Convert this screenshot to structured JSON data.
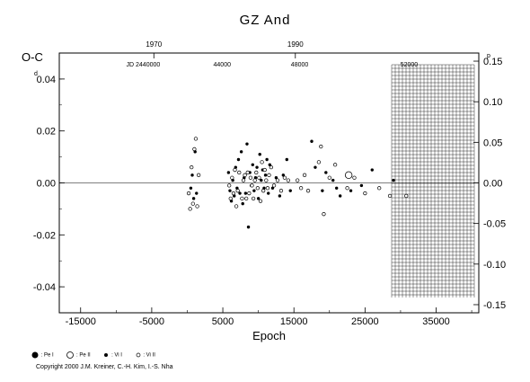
{
  "title": "GZ And",
  "copyright": "Copyright 2000 J.M. Kreiner, C.-H. Kim, I.-S. Nha",
  "legend": [
    {
      "label": ": Pe I",
      "symbol": "filled-large"
    },
    {
      "label": ": Pe II",
      "symbol": "open-large"
    },
    {
      "label": ": Vi I",
      "symbol": "filled-small"
    },
    {
      "label": ": Vi II",
      "symbol": "open-small"
    }
  ],
  "chart_data": {
    "type": "scatter",
    "title": "GZ And",
    "xlabel": "Epoch",
    "ylabel": "O-C",
    "y_unit": "d",
    "y2_unit": "p",
    "xlim": [
      -18000,
      41000
    ],
    "ylim": [
      -0.05,
      0.05
    ],
    "y2lim": [
      -0.16,
      0.16
    ],
    "x_ticks": [
      -15000,
      -5000,
      5000,
      15000,
      25000,
      35000
    ],
    "x_tick_labels": [
      "-15000",
      "-5000",
      "5000",
      "15000",
      "25000",
      "35000"
    ],
    "y_ticks": [
      -0.04,
      -0.02,
      0.0,
      0.02,
      0.04
    ],
    "y_tick_labels": [
      "-0.04",
      "-0.02",
      "0.00",
      "0.02",
      "0.04"
    ],
    "y2_ticks": [
      -0.15,
      -0.1,
      -0.05,
      0.0,
      0.05,
      0.1,
      0.15
    ],
    "y2_tick_labels": [
      "-0.15",
      "-0.10",
      "-0.05",
      "0.00",
      "0.05",
      "0.10",
      "0.15"
    ],
    "top_year_ticks": [
      {
        "label": "1970",
        "x": -4700
      },
      {
        "label": "1990",
        "x": 15200
      }
    ],
    "top_jd_ticks": [
      {
        "label": "JD 2440000",
        "x": -6200
      },
      {
        "label": "44000",
        "x": 4900
      },
      {
        "label": "48000",
        "x": 15800
      },
      {
        "label": "52000",
        "x": 31200
      }
    ],
    "reference_line_y": 0.0,
    "grid": "hatched region x >= 30600",
    "series": [
      {
        "name": ": Vi I",
        "marker": "filled-small",
        "points": [
          [
            500,
            -0.002
          ],
          [
            700,
            0.003
          ],
          [
            900,
            -0.006
          ],
          [
            1100,
            0.012
          ],
          [
            1300,
            -0.004
          ],
          [
            5800,
            0.004
          ],
          [
            6000,
            -0.003
          ],
          [
            6200,
            -0.007
          ],
          [
            6400,
            0.001
          ],
          [
            6600,
            -0.005
          ],
          [
            6800,
            0.006
          ],
          [
            7000,
            -0.002
          ],
          [
            7200,
            0.009
          ],
          [
            7400,
            -0.004
          ],
          [
            7600,
            0.012
          ],
          [
            7800,
            -0.008
          ],
          [
            8000,
            0.002
          ],
          [
            8200,
            -0.004
          ],
          [
            8400,
            0.015
          ],
          [
            8600,
            -0.017
          ],
          [
            8800,
            0.004
          ],
          [
            9000,
            -0.001
          ],
          [
            9200,
            0.007
          ],
          [
            9400,
            -0.003
          ],
          [
            9600,
            0.002
          ],
          [
            9800,
            0.006
          ],
          [
            10000,
            -0.006
          ],
          [
            10200,
            0.011
          ],
          [
            10400,
            0.001
          ],
          [
            10600,
            0.005
          ],
          [
            10800,
            -0.002
          ],
          [
            11000,
            0.003
          ],
          [
            11200,
            0.009
          ],
          [
            11400,
            -0.004
          ],
          [
            11600,
            0.007
          ],
          [
            12000,
            -0.002
          ],
          [
            12500,
            0.002
          ],
          [
            13000,
            -0.005
          ],
          [
            13500,
            0.003
          ],
          [
            14000,
            0.009
          ],
          [
            14500,
            -0.003
          ],
          [
            17500,
            0.016
          ],
          [
            18000,
            0.006
          ],
          [
            19000,
            -0.003
          ],
          [
            19500,
            0.004
          ],
          [
            20500,
            0.001
          ],
          [
            21000,
            -0.002
          ],
          [
            21500,
            -0.005
          ],
          [
            23000,
            -0.003
          ],
          [
            24500,
            -0.001
          ],
          [
            26000,
            0.005
          ],
          [
            29000,
            0.001
          ]
        ]
      },
      {
        "name": ": Vi II",
        "marker": "open-small",
        "points": [
          [
            200,
            -0.004
          ],
          [
            400,
            -0.01
          ],
          [
            600,
            0.006
          ],
          [
            800,
            -0.008
          ],
          [
            1000,
            0.013
          ],
          [
            1200,
            0.017
          ],
          [
            1400,
            -0.009
          ],
          [
            1600,
            0.003
          ],
          [
            5900,
            -0.001
          ],
          [
            6100,
            -0.006
          ],
          [
            6300,
            0.002
          ],
          [
            6500,
            -0.004
          ],
          [
            6700,
            0.005
          ],
          [
            6900,
            -0.009
          ],
          [
            7100,
            -0.003
          ],
          [
            7300,
            0.004
          ],
          [
            7700,
            -0.006
          ],
          [
            7900,
            0.001
          ],
          [
            8100,
            0.003
          ],
          [
            8300,
            -0.006
          ],
          [
            8500,
            0.004
          ],
          [
            8700,
            -0.004
          ],
          [
            8900,
            0.002
          ],
          [
            9100,
            -0.001
          ],
          [
            9300,
            -0.006
          ],
          [
            9500,
            0.001
          ],
          [
            9700,
            0.004
          ],
          [
            9900,
            -0.002
          ],
          [
            10100,
            0.002
          ],
          [
            10300,
            -0.007
          ],
          [
            10500,
            0.008
          ],
          [
            10700,
            -0.003
          ],
          [
            10900,
            0.005
          ],
          [
            11100,
            0.001
          ],
          [
            11300,
            -0.002
          ],
          [
            11500,
            0.003
          ],
          [
            11800,
            0.006
          ],
          [
            12200,
            -0.001
          ],
          [
            12700,
            0.001
          ],
          [
            13200,
            -0.003
          ],
          [
            13700,
            0.002
          ],
          [
            14200,
            0.001
          ],
          [
            15500,
            0.001
          ],
          [
            16000,
            -0.002
          ],
          [
            16500,
            0.003
          ],
          [
            17000,
            -0.003
          ],
          [
            18500,
            0.008
          ],
          [
            18800,
            0.014
          ],
          [
            19200,
            -0.012
          ],
          [
            20000,
            0.002
          ],
          [
            20800,
            0.007
          ],
          [
            22500,
            -0.002
          ],
          [
            23500,
            0.002
          ],
          [
            25000,
            -0.004
          ],
          [
            27000,
            -0.002
          ],
          [
            28500,
            -0.005
          ],
          [
            30800,
            -0.005
          ]
        ]
      },
      {
        "name": ": Pe II",
        "marker": "open-large",
        "points": [
          [
            22700,
            0.003
          ]
        ]
      }
    ]
  }
}
